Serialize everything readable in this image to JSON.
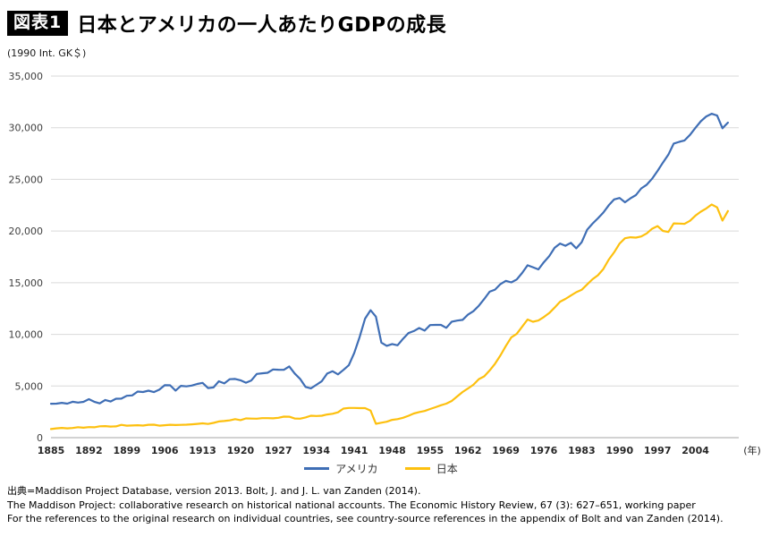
{
  "header": {
    "badge": "図表1",
    "title": "日本とアメリカの一人あたりGDPの成長"
  },
  "footer": {
    "line1": "出典=Maddison Project Database, version 2013. Bolt, J. and J. L. van Zanden (2014).",
    "line2": "The Maddison Project: collaborative research on historical national accounts. The Economic History Review, 67 (3): 627–651, working paper",
    "line3": "For the references to the original research on individual countries, see country-source references in the appendix of Bolt and van Zanden (2014)."
  },
  "chart_data": {
    "type": "line",
    "title": "日本とアメリカの一人あたりGDPの成長",
    "unit_label": "(1990 Int. GK＄)",
    "x_unit_label": "(年)",
    "x_start": 1885,
    "x_end": 2010,
    "xlim": [
      1885,
      2012
    ],
    "ylim": [
      0,
      35000
    ],
    "y_step": 5000,
    "grid": "horizontal",
    "legend_position": "bottom-center",
    "x_ticks": [
      1885,
      1892,
      1899,
      1906,
      1913,
      1920,
      1927,
      1934,
      1941,
      1948,
      1955,
      1962,
      1969,
      1976,
      1983,
      1990,
      1997,
      2004
    ],
    "y_ticks": [
      "35,000",
      "30,000",
      "25,000",
      "20,000",
      "15,000",
      "10,000",
      "5,000",
      "0"
    ],
    "series": [
      {
        "id": "usa",
        "name": "アメリカ",
        "color": "#3f6eb5",
        "values": [
          3287,
          3295,
          3373,
          3296,
          3471,
          3392,
          3467,
          3728,
          3478,
          3314,
          3644,
          3504,
          3769,
          3780,
          4051,
          4091,
          4464,
          4421,
          4551,
          4410,
          4642,
          5079,
          5065,
          4561,
          5017,
          4964,
          5046,
          5201,
          5301,
          4799,
          4864,
          5459,
          5248,
          5659,
          5680,
          5552,
          5323,
          5540,
          6164,
          6233,
          6282,
          6602,
          6576,
          6569,
          6899,
          6213,
          5691,
          4908,
          4777,
          5114,
          5467,
          6204,
          6430,
          6126,
          6561,
          7010,
          8206,
          9741,
          11518,
          12333,
          11709,
          9197,
          8886,
          9065,
          8944,
          9561,
          10116,
          10316,
          10613,
          10359,
          10897,
          10914,
          10920,
          10631,
          11230,
          11328,
          11402,
          11905,
          12242,
          12773,
          13419,
          14134,
          14330,
          14863,
          15179,
          15030,
          15304,
          15944,
          16689,
          16491,
          16284,
          16975,
          17567,
          18373,
          18789,
          18577,
          18856,
          18325,
          18920,
          20123,
          20717,
          21236,
          21788,
          22499,
          23059,
          23201,
          22785,
          23169,
          23477,
          24130,
          24484,
          25066,
          25819,
          26619,
          27395,
          28467,
          28629,
          28772,
          29304,
          29994,
          30627,
          31097,
          31357,
          31178,
          29946,
          30491
        ]
      },
      {
        "id": "japan",
        "name": "日本",
        "color": "#fdc00f",
        "values": [
          836,
          899,
          943,
          903,
          934,
          1012,
          960,
          1021,
          1006,
          1097,
          1119,
          1072,
          1089,
          1240,
          1164,
          1180,
          1208,
          1166,
          1248,
          1253,
          1157,
          1202,
          1248,
          1225,
          1235,
          1254,
          1295,
          1334,
          1387,
          1327,
          1430,
          1569,
          1614,
          1668,
          1795,
          1696,
          1860,
          1842,
          1840,
          1885,
          1885,
          1872,
          1926,
          2035,
          2026,
          1850,
          1837,
          1962,
          2122,
          2098,
          2120,
          2244,
          2315,
          2449,
          2816,
          2874,
          2873,
          2858,
          2855,
          2629,
          1346,
          1444,
          1541,
          1725,
          1795,
          1921,
          2115,
          2336,
          2474,
          2580,
          2771,
          2948,
          3133,
          3290,
          3554,
          3986,
          4421,
          4752,
          5117,
          5668,
          5934,
          6506,
          7152,
          7971,
          8874,
          9714,
          10041,
          10734,
          11434,
          11222,
          11344,
          11669,
          12063,
          12585,
          13163,
          13428,
          13754,
          14075,
          14308,
          14829,
          15331,
          15727,
          16322,
          17244,
          17943,
          18789,
          19300,
          19400,
          19365,
          19472,
          19772,
          20219,
          20478,
          20010,
          19907,
          20738,
          20724,
          20701,
          20990,
          21493,
          21873,
          22191,
          22566,
          22291,
          21006,
          21935
        ]
      }
    ]
  }
}
